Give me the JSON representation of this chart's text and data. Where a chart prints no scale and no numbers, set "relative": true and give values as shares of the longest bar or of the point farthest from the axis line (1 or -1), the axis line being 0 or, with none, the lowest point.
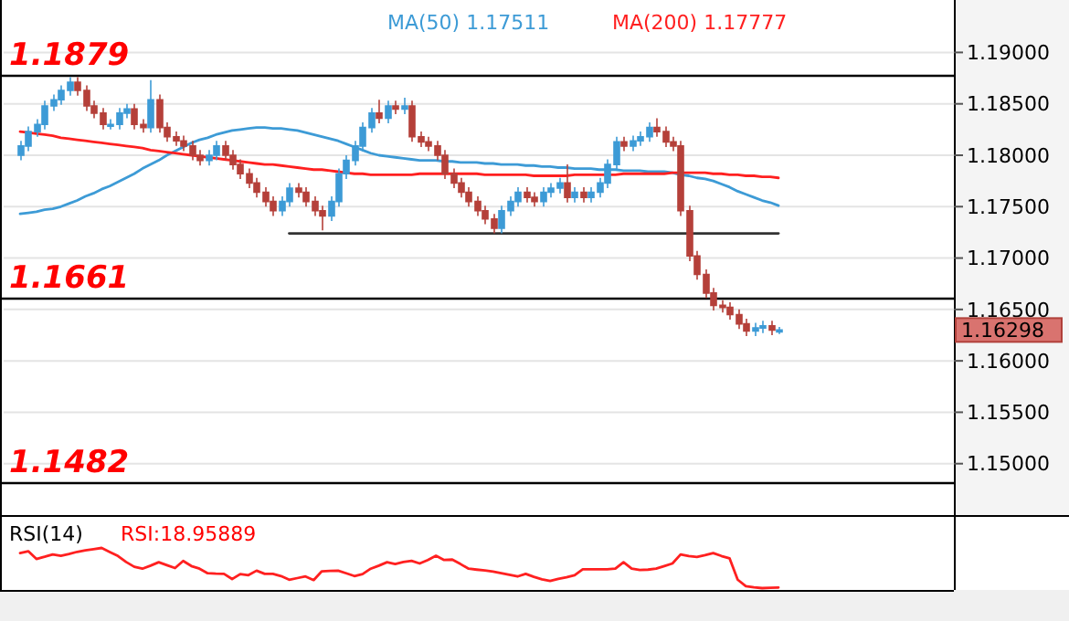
{
  "chart_data": [
    {
      "type": "candlestick",
      "tick_labels": "y",
      "grid": "y",
      "ylim": [
        1.145,
        1.1951
      ],
      "yticks": [
        {
          "value": 1.19,
          "label": "1.19000"
        },
        {
          "value": 1.185,
          "label": "1.18500"
        },
        {
          "value": 1.18,
          "label": "1.18000"
        },
        {
          "value": 1.175,
          "label": "1.17500"
        },
        {
          "value": 1.17,
          "label": "1.17000"
        },
        {
          "value": 1.165,
          "label": "1.16500"
        },
        {
          "value": 1.16,
          "label": "1.16000"
        },
        {
          "value": 1.155,
          "label": "1.15500"
        },
        {
          "value": 1.15,
          "label": "1.15000"
        }
      ],
      "colors": [
        "#3d9bd6",
        "#3d9bd6",
        "#3d9bd6",
        "#3d9bd6",
        "#3d9bd6",
        "#3d9bd6",
        "#3d9bd6",
        "#b5403a",
        "#b5403a",
        "#b5403a",
        "#b5403a",
        "#3d9bd6",
        "#3d9bd6",
        "#3d9bd6",
        "#b5403a",
        "#b5403a",
        "#3d9bd6",
        "#b5403a",
        "#b5403a",
        "#b5403a",
        "#b5403a",
        "#b5403a",
        "#b5403a",
        "#3d9bd6",
        "#3d9bd6",
        "#b5403a",
        "#b5403a",
        "#b5403a",
        "#b5403a",
        "#b5403a",
        "#b5403a",
        "#b5403a",
        "#3d9bd6",
        "#3d9bd6",
        "#b5403a",
        "#b5403a",
        "#b5403a",
        "#b5403a",
        "#3d9bd6",
        "#3d9bd6",
        "#3d9bd6",
        "#3d9bd6",
        "#3d9bd6",
        "#3d9bd6",
        "#b5403a",
        "#3d9bd6",
        "#b5403a",
        "#3d9bd6",
        "#b5403a",
        "#b5403a",
        "#b5403a",
        "#b5403a",
        "#b5403a",
        "#b5403a",
        "#b5403a",
        "#b5403a",
        "#b5403a",
        "#b5403a",
        "#b5403a",
        "#3d9bd6",
        "#3d9bd6",
        "#3d9bd6",
        "#b5403a",
        "#b5403a",
        "#3d9bd6",
        "#3d9bd6",
        "#3d9bd6",
        "#b5403a",
        "#3d9bd6",
        "#b5403a",
        "#3d9bd6",
        "#3d9bd6",
        "#3d9bd6",
        "#3d9bd6",
        "#b5403a",
        "#3d9bd6",
        "#3d9bd6",
        "#3d9bd6",
        "#b5403a",
        "#b5403a",
        "#b5403a",
        "#b5403a",
        "#b5403a",
        "#b5403a",
        "#b5403a",
        "#b5403a",
        "#b5403a",
        "#b5403a",
        "#b5403a",
        "#b5403a",
        "#3d9bd6",
        "#3d9bd6",
        "#b5403a",
        "#3d9bd6"
      ],
      "categories": [
        null,
        null,
        null,
        null,
        null,
        null,
        null,
        null,
        null,
        null,
        null,
        null,
        null,
        null,
        null,
        null,
        null,
        null,
        null,
        null,
        null,
        null,
        null,
        null,
        null,
        null,
        null,
        null,
        null,
        null,
        null,
        null,
        null,
        null,
        null,
        null,
        null,
        null,
        null,
        null,
        null,
        null,
        null,
        null,
        null,
        null,
        null,
        null,
        null,
        null,
        null,
        null,
        null,
        null,
        null,
        null,
        null,
        null,
        null,
        null,
        null,
        null,
        null,
        null,
        null,
        null,
        null,
        null,
        null,
        null,
        null,
        null,
        null,
        null,
        null,
        null,
        null,
        null,
        null,
        null,
        null,
        null,
        null,
        null,
        null,
        null,
        null,
        null,
        null,
        null,
        null,
        null,
        null,
        null
      ],
      "ohlc": [
        [
          1.18,
          1.1814,
          1.1795,
          1.1809
        ],
        [
          1.1809,
          1.1828,
          1.1804,
          1.1823
        ],
        [
          1.1823,
          1.1835,
          1.1818,
          1.183
        ],
        [
          1.183,
          1.1853,
          1.1825,
          1.1848
        ],
        [
          1.1848,
          1.1859,
          1.1843,
          1.1854
        ],
        [
          1.1854,
          1.1868,
          1.1849,
          1.1863
        ],
        [
          1.1863,
          1.1876,
          1.1858,
          1.1871
        ],
        [
          1.1871,
          1.1876,
          1.1858,
          1.1863
        ],
        [
          1.1863,
          1.1868,
          1.1843,
          1.1848
        ],
        [
          1.1848,
          1.1853,
          1.1836,
          1.1841
        ],
        [
          1.1841,
          1.1846,
          1.1825,
          1.183
        ],
        [
          1.183,
          1.1835,
          1.1825,
          1.183
        ],
        [
          1.183,
          1.1846,
          1.1825,
          1.1841
        ],
        [
          1.1841,
          1.185,
          1.1836,
          1.1845
        ],
        [
          1.1845,
          1.185,
          1.1825,
          1.183
        ],
        [
          1.183,
          1.1835,
          1.1822,
          1.1827
        ],
        [
          1.1827,
          1.1873,
          1.1822,
          1.1854
        ],
        [
          1.1854,
          1.1859,
          1.1822,
          1.1827
        ],
        [
          1.1827,
          1.1832,
          1.1813,
          1.1818
        ],
        [
          1.1818,
          1.1823,
          1.1809,
          1.1814
        ],
        [
          1.1814,
          1.1819,
          1.1804,
          1.1809
        ],
        [
          1.1809,
          1.1814,
          1.1795,
          1.18
        ],
        [
          1.18,
          1.1805,
          1.179,
          1.1795
        ],
        [
          1.1795,
          1.1805,
          1.179,
          1.18
        ],
        [
          1.18,
          1.1814,
          1.1795,
          1.1809
        ],
        [
          1.1809,
          1.1814,
          1.1795,
          1.18
        ],
        [
          1.18,
          1.1805,
          1.1786,
          1.1791
        ],
        [
          1.1791,
          1.1796,
          1.1777,
          1.1782
        ],
        [
          1.1782,
          1.1787,
          1.1768,
          1.1773
        ],
        [
          1.1773,
          1.1778,
          1.1759,
          1.1764
        ],
        [
          1.1764,
          1.1769,
          1.175,
          1.1755
        ],
        [
          1.1755,
          1.176,
          1.1741,
          1.1746
        ],
        [
          1.1746,
          1.176,
          1.1741,
          1.1755
        ],
        [
          1.1755,
          1.1773,
          1.175,
          1.1768
        ],
        [
          1.1768,
          1.1773,
          1.1759,
          1.1764
        ],
        [
          1.1764,
          1.1769,
          1.175,
          1.1755
        ],
        [
          1.1755,
          1.176,
          1.1741,
          1.1746
        ],
        [
          1.1746,
          1.1751,
          1.1727,
          1.1741
        ],
        [
          1.1741,
          1.176,
          1.1736,
          1.1755
        ],
        [
          1.1755,
          1.1787,
          1.175,
          1.1782
        ],
        [
          1.1782,
          1.18,
          1.1777,
          1.1795
        ],
        [
          1.1795,
          1.1814,
          1.179,
          1.1809
        ],
        [
          1.1809,
          1.1832,
          1.1804,
          1.1827
        ],
        [
          1.1827,
          1.1846,
          1.1822,
          1.1841
        ],
        [
          1.1841,
          1.1854,
          1.1831,
          1.1836
        ],
        [
          1.1836,
          1.1853,
          1.1831,
          1.1848
        ],
        [
          1.1848,
          1.1853,
          1.184,
          1.1845
        ],
        [
          1.1845,
          1.1856,
          1.184,
          1.1848
        ],
        [
          1.1848,
          1.1853,
          1.1813,
          1.1818
        ],
        [
          1.1818,
          1.1823,
          1.1808,
          1.1813
        ],
        [
          1.1813,
          1.1818,
          1.1804,
          1.1809
        ],
        [
          1.1809,
          1.1814,
          1.1795,
          1.18
        ],
        [
          1.18,
          1.1805,
          1.1777,
          1.1782
        ],
        [
          1.1782,
          1.1787,
          1.1768,
          1.1773
        ],
        [
          1.1773,
          1.1778,
          1.1759,
          1.1764
        ],
        [
          1.1764,
          1.1769,
          1.175,
          1.1755
        ],
        [
          1.1755,
          1.176,
          1.1741,
          1.1746
        ],
        [
          1.1746,
          1.1751,
          1.1733,
          1.1738
        ],
        [
          1.1738,
          1.1743,
          1.1724,
          1.1729
        ],
        [
          1.1729,
          1.1751,
          1.1724,
          1.1746
        ],
        [
          1.1746,
          1.176,
          1.1741,
          1.1755
        ],
        [
          1.1755,
          1.1769,
          1.175,
          1.1764
        ],
        [
          1.1764,
          1.1769,
          1.1754,
          1.1759
        ],
        [
          1.1759,
          1.1764,
          1.175,
          1.1755
        ],
        [
          1.1755,
          1.1769,
          1.175,
          1.1764
        ],
        [
          1.1764,
          1.1773,
          1.1759,
          1.1768
        ],
        [
          1.1768,
          1.1778,
          1.1763,
          1.1773
        ],
        [
          1.1773,
          1.1791,
          1.1754,
          1.1759
        ],
        [
          1.1759,
          1.1769,
          1.1754,
          1.1764
        ],
        [
          1.1764,
          1.1769,
          1.1754,
          1.1759
        ],
        [
          1.1759,
          1.1769,
          1.1754,
          1.1764
        ],
        [
          1.1764,
          1.1778,
          1.1759,
          1.1773
        ],
        [
          1.1773,
          1.1796,
          1.1768,
          1.1791
        ],
        [
          1.1791,
          1.1818,
          1.1786,
          1.1813
        ],
        [
          1.1813,
          1.1818,
          1.1804,
          1.1809
        ],
        [
          1.1809,
          1.1819,
          1.1804,
          1.1814
        ],
        [
          1.1814,
          1.1823,
          1.1809,
          1.1818
        ],
        [
          1.1818,
          1.1832,
          1.1813,
          1.1827
        ],
        [
          1.1827,
          1.1836,
          1.1818,
          1.1823
        ],
        [
          1.1823,
          1.1828,
          1.1808,
          1.1813
        ],
        [
          1.1813,
          1.1818,
          1.1804,
          1.1809
        ],
        [
          1.1809,
          1.1814,
          1.1741,
          1.1746
        ],
        [
          1.1746,
          1.1751,
          1.1697,
          1.1702
        ],
        [
          1.1702,
          1.1707,
          1.1679,
          1.1684
        ],
        [
          1.1684,
          1.1689,
          1.1661,
          1.1666
        ],
        [
          1.1666,
          1.1671,
          1.1649,
          1.1654
        ],
        [
          1.1654,
          1.1659,
          1.1647,
          1.1652
        ],
        [
          1.1652,
          1.1657,
          1.164,
          1.1645
        ],
        [
          1.1645,
          1.165,
          1.1631,
          1.1636
        ],
        [
          1.1636,
          1.1641,
          1.1624,
          1.1629
        ],
        [
          1.1629,
          1.1637,
          1.1624,
          1.1632
        ],
        [
          1.1632,
          1.1639,
          1.1627,
          1.1634
        ],
        [
          1.1634,
          1.1639,
          1.1625,
          1.163
        ],
        [
          1.163,
          1.1633,
          1.1626,
          1.163
        ]
      ],
      "series": [
        {
          "type": "line",
          "name": "MA(50) 1.17511",
          "color": "#3d9bd6",
          "values": [
            1.1743,
            1.1744,
            1.1745,
            1.1747,
            1.1748,
            1.175,
            1.1753,
            1.1756,
            1.176,
            1.1763,
            1.1767,
            1.177,
            1.1774,
            1.1778,
            1.1782,
            1.1787,
            1.1791,
            1.1795,
            1.18,
            1.1804,
            1.1808,
            1.1812,
            1.1815,
            1.1817,
            1.182,
            1.1822,
            1.1824,
            1.1825,
            1.1826,
            1.1827,
            1.1827,
            1.1826,
            1.1826,
            1.1825,
            1.1824,
            1.1822,
            1.182,
            1.1818,
            1.1816,
            1.1814,
            1.1811,
            1.1808,
            1.1805,
            1.1802,
            1.18,
            1.1799,
            1.1798,
            1.1797,
            1.1796,
            1.1795,
            1.1795,
            1.1795,
            1.1794,
            1.1794,
            1.1793,
            1.1793,
            1.1793,
            1.1792,
            1.1792,
            1.1791,
            1.1791,
            1.1791,
            1.179,
            1.179,
            1.1789,
            1.1789,
            1.1788,
            1.1788,
            1.1787,
            1.1787,
            1.1787,
            1.1786,
            1.1786,
            1.1786,
            1.1785,
            1.1785,
            1.1785,
            1.1784,
            1.1784,
            1.1784,
            1.1783,
            1.1781,
            1.178,
            1.1778,
            1.1777,
            1.1775,
            1.1772,
            1.1769,
            1.1765,
            1.1762,
            1.1759,
            1.1756,
            1.1754,
            1.1751
          ]
        },
        {
          "type": "line",
          "name": "MA(200) 1.17777",
          "color": "#ff2020",
          "values": [
            1.1823,
            1.1822,
            1.1821,
            1.182,
            1.1819,
            1.1817,
            1.1816,
            1.1815,
            1.1814,
            1.1813,
            1.1812,
            1.1811,
            1.181,
            1.1809,
            1.1808,
            1.1807,
            1.1805,
            1.1804,
            1.1803,
            1.1802,
            1.1801,
            1.18,
            1.1799,
            1.1798,
            1.1797,
            1.1796,
            1.1795,
            1.1794,
            1.1793,
            1.1792,
            1.1791,
            1.1791,
            1.179,
            1.1789,
            1.1788,
            1.1787,
            1.1786,
            1.1786,
            1.1785,
            1.1784,
            1.1783,
            1.1782,
            1.1782,
            1.1781,
            1.1781,
            1.1781,
            1.1781,
            1.1781,
            1.1781,
            1.1782,
            1.1782,
            1.1782,
            1.1782,
            1.1782,
            1.1782,
            1.1782,
            1.1782,
            1.1781,
            1.1781,
            1.1781,
            1.1781,
            1.1781,
            1.1781,
            1.178,
            1.178,
            1.178,
            1.178,
            1.178,
            1.1781,
            1.1781,
            1.1781,
            1.1781,
            1.1781,
            1.1781,
            1.1782,
            1.1782,
            1.1782,
            1.1782,
            1.1782,
            1.1782,
            1.1783,
            1.1783,
            1.1783,
            1.1783,
            1.1783,
            1.1782,
            1.1782,
            1.1781,
            1.1781,
            1.178,
            1.178,
            1.1779,
            1.1779,
            1.1778
          ]
        },
        {
          "type": "line",
          "color": "#333333",
          "values": [
            null,
            null,
            null,
            null,
            null,
            null,
            null,
            null,
            null,
            null,
            null,
            null,
            null,
            null,
            null,
            null,
            null,
            null,
            null,
            null,
            null,
            null,
            null,
            null,
            null,
            null,
            null,
            null,
            null,
            null,
            null,
            null,
            null,
            1.1724,
            1.1724,
            1.1724,
            1.1724,
            1.1724,
            1.1724,
            1.1724,
            1.1724,
            1.1724,
            1.1724,
            1.1724,
            1.1724,
            1.1724,
            1.1724,
            1.1724,
            1.1724,
            1.1724,
            1.1724,
            1.1724,
            1.1724,
            1.1724,
            1.1724,
            1.1724,
            1.1724,
            1.1724,
            1.1724,
            1.1724,
            1.1724,
            1.1724,
            1.1724,
            1.1724,
            1.1724,
            1.1724,
            1.1724,
            1.1724,
            1.1724,
            1.1724,
            1.1724,
            1.1724,
            1.1724,
            1.1724,
            1.1724,
            1.1724,
            1.1724,
            1.1724,
            1.1724,
            1.1724,
            1.1724,
            1.1724,
            1.1724,
            1.1724,
            1.1724,
            1.1724,
            1.1724,
            1.1724,
            1.1724,
            1.1724,
            1.1724,
            1.1724,
            1.1724,
            1.1724
          ]
        }
      ],
      "ref_lines": [
        {
          "axis": "y",
          "value": 1.1879,
          "label": "1.1879",
          "color": "#000000"
        },
        {
          "axis": "y",
          "value": 1.1661,
          "label": "1.1661",
          "color": "#000000"
        },
        {
          "axis": "y",
          "value": 1.1482,
          "label": "1.1482",
          "color": "#000000"
        }
      ],
      "annotations": [
        "1.16298"
      ]
    },
    {
      "type": "line",
      "relative": true,
      "title": "RSI(14)",
      "annotations": [
        "RSI:18.95889"
      ],
      "categories": [
        null,
        null,
        null,
        null,
        null,
        null,
        null,
        null,
        null,
        null,
        null,
        null,
        null,
        null,
        null,
        null,
        null,
        null,
        null,
        null,
        null,
        null,
        null,
        null,
        null,
        null,
        null,
        null,
        null,
        null,
        null,
        null,
        null,
        null,
        null,
        null,
        null,
        null,
        null,
        null,
        null,
        null,
        null,
        null,
        null,
        null,
        null,
        null,
        null,
        null,
        null,
        null,
        null,
        null,
        null,
        null,
        null,
        null,
        null,
        null,
        null,
        null,
        null,
        null,
        null,
        null,
        null,
        null,
        null,
        null,
        null,
        null,
        null,
        null,
        null,
        null,
        null,
        null,
        null,
        null,
        null,
        null,
        null,
        null,
        null,
        null,
        null,
        null,
        null,
        null,
        null,
        null,
        null,
        null
      ],
      "series": [
        {
          "color": "#ff2020",
          "values": [
            0.871,
            0.919,
            0.726,
            0.78,
            0.839,
            0.806,
            0.85,
            0.903,
            0.94,
            0.97,
            1,
            0.9,
            0.8,
            0.65,
            0.532,
            0.484,
            0.56,
            0.645,
            0.57,
            0.5,
            0.677,
            0.55,
            0.484,
            0.371,
            0.36,
            0.355,
            0.226,
            0.35,
            0.323,
            0.435,
            0.355,
            0.355,
            0.3,
            0.21,
            0.25,
            0.29,
            0.2,
            0.419,
            0.43,
            0.435,
            0.37,
            0.3,
            0.35,
            0.484,
            0.56,
            0.645,
            0.6,
            0.65,
            0.68,
            0.613,
            0.7,
            0.806,
            0.7,
            0.71,
            0.6,
            0.484,
            0.46,
            0.44,
            0.41,
            0.371,
            0.33,
            0.29,
            0.355,
            0.28,
            0.22,
            0.177,
            0.23,
            0.27,
            0.323,
            0.468,
            0.468,
            0.468,
            0.47,
            0.484,
            0.645,
            0.484,
            0.452,
            0.46,
            0.484,
            0.55,
            0.613,
            0.839,
            0.8,
            0.774,
            0.82,
            0.871,
            0.8,
            0.742,
            0.21,
            0.048,
            0.02,
            0,
            0.01,
            0.016
          ]
        }
      ]
    }
  ]
}
